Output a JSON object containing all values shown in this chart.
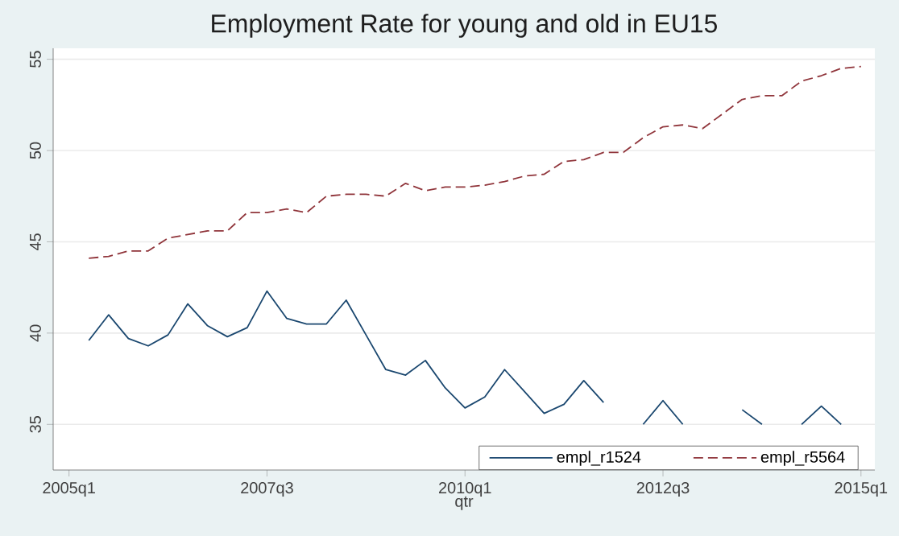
{
  "chart_data": {
    "type": "line",
    "title": "Employment Rate for young and old in EU15",
    "xlabel": "qtr",
    "categories": [
      "2005q1",
      null,
      null,
      null,
      null,
      null,
      null,
      null,
      null,
      null,
      "2007q3",
      null,
      null,
      null,
      null,
      null,
      null,
      null,
      null,
      null,
      "2010q1",
      null,
      null,
      null,
      null,
      null,
      null,
      null,
      null,
      null,
      "2012q3",
      null,
      null,
      null,
      null,
      null,
      null,
      null,
      null,
      null,
      "2015q1"
    ],
    "series": [
      {
        "name": "empl_r1524",
        "color": "#1a476f",
        "line_style": "solid",
        "values": [
          null,
          39.6,
          41.0,
          39.7,
          39.3,
          39.9,
          41.6,
          40.4,
          39.8,
          40.3,
          42.3,
          40.8,
          40.5,
          40.5,
          41.8,
          39.9,
          38.0,
          37.7,
          38.5,
          37.0,
          35.9,
          36.5,
          38.0,
          36.8,
          35.6,
          36.1,
          37.4,
          36.2,
          null,
          35.0,
          36.3,
          35.0,
          null,
          null,
          35.8,
          35.0,
          null,
          35.0,
          36.0,
          35.0,
          null
        ]
      },
      {
        "name": "empl_r5564",
        "color": "#90353b",
        "line_style": "dashed",
        "values": [
          null,
          44.1,
          44.2,
          44.5,
          44.5,
          45.2,
          45.4,
          45.6,
          45.6,
          46.6,
          46.6,
          46.8,
          46.6,
          47.5,
          47.6,
          47.6,
          47.5,
          48.2,
          47.8,
          48.0,
          48.0,
          48.1,
          48.3,
          48.6,
          48.7,
          49.4,
          49.5,
          49.9,
          49.9,
          50.7,
          51.3,
          51.4,
          51.2,
          52.0,
          52.8,
          53.0,
          53.0,
          53.8,
          54.1,
          54.5,
          54.6
        ]
      }
    ],
    "ylim": [
      32.5,
      55.6
    ],
    "yticks": [
      35,
      40,
      45,
      50,
      55
    ],
    "grid": "y",
    "legend": "bottom right",
    "marker": "none"
  }
}
